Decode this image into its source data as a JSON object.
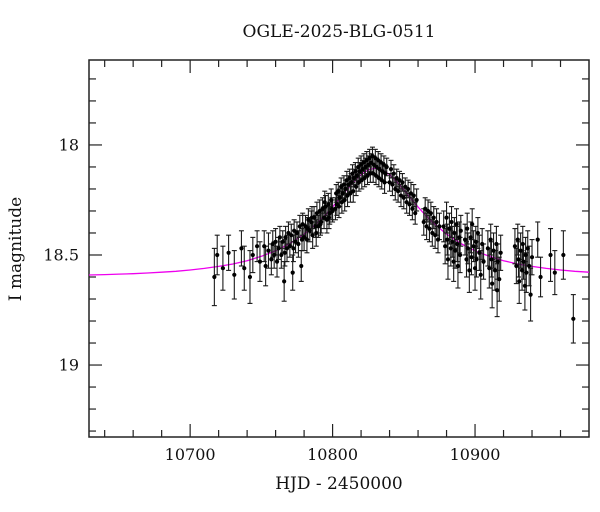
{
  "figure": {
    "background": "#ffffff"
  },
  "chart_data": {
    "type": "scatter",
    "title": "OGLE-2025-BLG-0511",
    "xlabel": "HJD - 2450000",
    "ylabel": "I magnitude",
    "xlim": [
      10629,
      10980
    ],
    "ylim": [
      17.614,
      19.327
    ],
    "y_axis_inverted_magnitude": true,
    "grid": false,
    "legend": "none",
    "x_major_ticks": [
      10700,
      10800,
      10900
    ],
    "x_tick_labels": [
      "10700",
      "10800",
      "10900"
    ],
    "x_minor_step": 20,
    "y_major_ticks": [
      18,
      18.5,
      19
    ],
    "y_tick_labels": [
      "18",
      "18.5",
      "19"
    ],
    "y_minor_step": 0.1,
    "model_curve": {
      "name": "microlensing-model",
      "color": "#ee00ee",
      "points": [
        [
          10629,
          18.591
        ],
        [
          10640,
          18.589
        ],
        [
          10650,
          18.587
        ],
        [
          10660,
          18.585
        ],
        [
          10670,
          18.582
        ],
        [
          10680,
          18.578
        ],
        [
          10690,
          18.574
        ],
        [
          10700,
          18.568
        ],
        [
          10710,
          18.561
        ],
        [
          10720,
          18.552
        ],
        [
          10730,
          18.541
        ],
        [
          10740,
          18.526
        ],
        [
          10750,
          18.506
        ],
        [
          10760,
          18.481
        ],
        [
          10770,
          18.448
        ],
        [
          10780,
          18.405
        ],
        [
          10790,
          18.35
        ],
        [
          10795,
          18.318
        ],
        [
          10800,
          18.282
        ],
        [
          10805,
          18.243
        ],
        [
          10810,
          18.204
        ],
        [
          10815,
          18.167
        ],
        [
          10820,
          18.135
        ],
        [
          10825,
          18.113
        ],
        [
          10830,
          18.106
        ],
        [
          10835,
          18.113
        ],
        [
          10840,
          18.135
        ],
        [
          10845,
          18.167
        ],
        [
          10850,
          18.204
        ],
        [
          10855,
          18.243
        ],
        [
          10860,
          18.282
        ],
        [
          10865,
          18.318
        ],
        [
          10870,
          18.35
        ],
        [
          10880,
          18.405
        ],
        [
          10890,
          18.448
        ],
        [
          10900,
          18.481
        ],
        [
          10910,
          18.506
        ],
        [
          10920,
          18.526
        ],
        [
          10930,
          18.541
        ],
        [
          10940,
          18.552
        ],
        [
          10950,
          18.561
        ],
        [
          10960,
          18.568
        ],
        [
          10970,
          18.574
        ],
        [
          10980,
          18.578
        ]
      ]
    },
    "observations": {
      "name": "OGLE-I-band-photometry",
      "marker_color": "#000000",
      "errorbar_color": "#1a1a1a",
      "points": [
        [
          10717,
          18.6,
          0.13
        ],
        [
          10719,
          18.5,
          0.09
        ],
        [
          10723,
          18.56,
          0.1
        ],
        [
          10727,
          18.49,
          0.08
        ],
        [
          10731,
          18.59,
          0.11
        ],
        [
          10736,
          18.47,
          0.08
        ],
        [
          10738,
          18.56,
          0.1
        ],
        [
          10742,
          18.6,
          0.12
        ],
        [
          10744,
          18.5,
          0.08
        ],
        [
          10747,
          18.46,
          0.07
        ],
        [
          10749,
          18.53,
          0.09
        ],
        [
          10752,
          18.46,
          0.07
        ],
        [
          10753,
          18.55,
          0.09
        ],
        [
          10755,
          18.48,
          0.08
        ],
        [
          10757,
          18.52,
          0.07
        ],
        [
          10758,
          18.45,
          0.06
        ],
        [
          10759,
          18.5,
          0.06
        ],
        [
          10760,
          18.44,
          0.06
        ],
        [
          10761,
          18.53,
          0.07
        ],
        [
          10762,
          18.47,
          0.05
        ],
        [
          10763,
          18.42,
          0.05
        ],
        [
          10764,
          18.5,
          0.06
        ],
        [
          10765,
          18.44,
          0.05
        ],
        [
          10766,
          18.62,
          0.09
        ],
        [
          10766.5,
          18.49,
          0.06
        ],
        [
          10767,
          18.42,
          0.05
        ],
        [
          10768,
          18.47,
          0.06
        ],
        [
          10769,
          18.4,
          0.05
        ],
        [
          10770,
          18.46,
          0.05
        ],
        [
          10771,
          18.41,
          0.05
        ],
        [
          10772,
          18.58,
          0.08
        ],
        [
          10772.5,
          18.47,
          0.06
        ],
        [
          10773,
          18.39,
          0.05
        ],
        [
          10774,
          18.44,
          0.05
        ],
        [
          10775,
          18.4,
          0.05
        ],
        [
          10776,
          18.45,
          0.06
        ],
        [
          10777,
          18.37,
          0.05
        ],
        [
          10778,
          18.55,
          0.07
        ],
        [
          10778.5,
          18.43,
          0.05
        ],
        [
          10779,
          18.36,
          0.05
        ],
        [
          10780,
          18.42,
          0.06
        ],
        [
          10781,
          18.37,
          0.05
        ],
        [
          10782,
          18.43,
          0.06
        ],
        [
          10782.5,
          18.38,
          0.05
        ],
        [
          10783,
          18.34,
          0.05
        ],
        [
          10784,
          18.39,
          0.05
        ],
        [
          10785,
          18.35,
          0.05
        ],
        [
          10785.5,
          18.33,
          0.05
        ],
        [
          10786,
          18.41,
          0.06
        ],
        [
          10787,
          18.33,
          0.05
        ],
        [
          10788,
          18.37,
          0.05
        ],
        [
          10788.5,
          18.4,
          0.06
        ],
        [
          10789,
          18.31,
          0.05
        ],
        [
          10790,
          18.37,
          0.05
        ],
        [
          10791,
          18.3,
          0.05
        ],
        [
          10791.5,
          18.36,
          0.05
        ],
        [
          10792,
          18.35,
          0.05
        ],
        [
          10793,
          18.29,
          0.05
        ],
        [
          10794,
          18.33,
          0.05
        ],
        [
          10794.5,
          18.26,
          0.05
        ],
        [
          10795,
          18.28,
          0.05
        ],
        [
          10796,
          18.34,
          0.06
        ],
        [
          10797,
          18.27,
          0.05
        ],
        [
          10797.5,
          18.33,
          0.05
        ],
        [
          10798,
          18.31,
          0.05
        ],
        [
          10799,
          18.25,
          0.05
        ],
        [
          10799.5,
          18.29,
          0.05
        ],
        [
          10800,
          18.3,
          0.05
        ],
        [
          10802,
          18.29,
          0.05
        ],
        [
          10802.5,
          18.22,
          0.04
        ],
        [
          10803,
          18.27,
          0.05
        ],
        [
          10804,
          18.21,
          0.04
        ],
        [
          10804.5,
          18.28,
          0.05
        ],
        [
          10805,
          18.24,
          0.04
        ],
        [
          10806,
          18.19,
          0.04
        ],
        [
          10806.5,
          18.26,
          0.05
        ],
        [
          10807,
          18.22,
          0.04
        ],
        [
          10808,
          18.18,
          0.04
        ],
        [
          10808.5,
          18.25,
          0.05
        ],
        [
          10809,
          18.2,
          0.04
        ],
        [
          10810,
          18.16,
          0.04
        ],
        [
          10810.5,
          18.23,
          0.05
        ],
        [
          10811,
          18.18,
          0.04
        ],
        [
          10812,
          18.15,
          0.04
        ],
        [
          10812.5,
          18.22,
          0.04
        ],
        [
          10813,
          18.17,
          0.04
        ],
        [
          10814,
          18.13,
          0.04
        ],
        [
          10814.5,
          18.21,
          0.05
        ],
        [
          10815,
          18.15,
          0.04
        ],
        [
          10816,
          18.12,
          0.04
        ],
        [
          10816.5,
          18.19,
          0.04
        ],
        [
          10817,
          18.14,
          0.04
        ],
        [
          10818,
          18.1,
          0.04
        ],
        [
          10818.5,
          18.17,
          0.04
        ],
        [
          10819,
          18.12,
          0.04
        ],
        [
          10820,
          18.09,
          0.04
        ],
        [
          10820.5,
          18.16,
          0.04
        ],
        [
          10821,
          18.11,
          0.04
        ],
        [
          10822,
          18.08,
          0.04
        ],
        [
          10822.5,
          18.15,
          0.04
        ],
        [
          10823,
          18.1,
          0.04
        ],
        [
          10824,
          18.07,
          0.04
        ],
        [
          10824.5,
          18.14,
          0.04
        ],
        [
          10825,
          18.09,
          0.04
        ],
        [
          10826,
          18.06,
          0.04
        ],
        [
          10826.5,
          18.13,
          0.04
        ],
        [
          10827,
          18.08,
          0.04
        ],
        [
          10828,
          18.05,
          0.04
        ],
        [
          10828.5,
          18.13,
          0.04
        ],
        [
          10829,
          18.09,
          0.04
        ],
        [
          10830,
          18.06,
          0.04
        ],
        [
          10830.5,
          18.14,
          0.04
        ],
        [
          10831,
          18.1,
          0.04
        ],
        [
          10832,
          18.07,
          0.04
        ],
        [
          10832.5,
          18.15,
          0.04
        ],
        [
          10833,
          18.11,
          0.04
        ],
        [
          10834,
          18.08,
          0.04
        ],
        [
          10834.5,
          18.16,
          0.04
        ],
        [
          10835,
          18.12,
          0.04
        ],
        [
          10836,
          18.09,
          0.04
        ],
        [
          10836.5,
          18.17,
          0.05
        ],
        [
          10837,
          18.13,
          0.04
        ],
        [
          10838,
          18.1,
          0.04
        ],
        [
          10840,
          18.17,
          0.04
        ],
        [
          10841,
          18.11,
          0.04
        ],
        [
          10842,
          18.18,
          0.05
        ],
        [
          10843,
          18.13,
          0.04
        ],
        [
          10844,
          18.2,
          0.05
        ],
        [
          10845,
          18.15,
          0.04
        ],
        [
          10846,
          18.21,
          0.05
        ],
        [
          10847,
          18.16,
          0.04
        ],
        [
          10848,
          18.23,
          0.05
        ],
        [
          10849,
          18.17,
          0.04
        ],
        [
          10850,
          18.24,
          0.05
        ],
        [
          10851,
          18.19,
          0.04
        ],
        [
          10852,
          18.26,
          0.05
        ],
        [
          10853,
          18.2,
          0.04
        ],
        [
          10854,
          18.27,
          0.05
        ],
        [
          10855,
          18.22,
          0.05
        ],
        [
          10856,
          18.29,
          0.05
        ],
        [
          10857,
          18.23,
          0.05
        ],
        [
          10858,
          18.31,
          0.05
        ],
        [
          10859,
          18.25,
          0.05
        ],
        [
          10864,
          18.35,
          0.06
        ],
        [
          10865,
          18.29,
          0.05
        ],
        [
          10866,
          18.37,
          0.06
        ],
        [
          10867,
          18.3,
          0.05
        ],
        [
          10868,
          18.38,
          0.06
        ],
        [
          10869,
          18.31,
          0.05
        ],
        [
          10870,
          18.4,
          0.06
        ],
        [
          10871,
          18.33,
          0.05
        ],
        [
          10872,
          18.41,
          0.06
        ],
        [
          10873,
          18.35,
          0.06
        ],
        [
          10874,
          18.43,
          0.06
        ],
        [
          10875,
          18.37,
          0.06
        ],
        [
          10878,
          18.37,
          0.07
        ],
        [
          10879,
          18.46,
          0.08
        ],
        [
          10880,
          18.33,
          0.07
        ],
        [
          10880.5,
          18.43,
          0.07
        ],
        [
          10881,
          18.52,
          0.09
        ],
        [
          10882,
          18.38,
          0.07
        ],
        [
          10883,
          18.47,
          0.08
        ],
        [
          10883.5,
          18.35,
          0.07
        ],
        [
          10884,
          18.44,
          0.07
        ],
        [
          10885,
          18.53,
          0.09
        ],
        [
          10885.5,
          18.4,
          0.07
        ],
        [
          10886,
          18.48,
          0.08
        ],
        [
          10887,
          18.36,
          0.07
        ],
        [
          10887.5,
          18.45,
          0.08
        ],
        [
          10888,
          18.55,
          0.1
        ],
        [
          10889,
          18.42,
          0.07
        ],
        [
          10889.5,
          18.5,
          0.08
        ],
        [
          10890,
          18.39,
          0.07
        ],
        [
          10893,
          18.43,
          0.07
        ],
        [
          10894,
          18.52,
          0.08
        ],
        [
          10894.5,
          18.38,
          0.07
        ],
        [
          10895,
          18.47,
          0.07
        ],
        [
          10896,
          18.57,
          0.1
        ],
        [
          10897,
          18.42,
          0.07
        ],
        [
          10897.5,
          18.51,
          0.08
        ],
        [
          10898,
          18.36,
          0.07
        ],
        [
          10899,
          18.46,
          0.07
        ],
        [
          10900,
          18.56,
          0.1
        ],
        [
          10900.5,
          18.44,
          0.07
        ],
        [
          10901,
          18.52,
          0.08
        ],
        [
          10902,
          18.4,
          0.07
        ],
        [
          10903,
          18.49,
          0.08
        ],
        [
          10904,
          18.59,
          0.11
        ],
        [
          10905,
          18.45,
          0.07
        ],
        [
          10906,
          18.53,
          0.08
        ],
        [
          10909,
          18.47,
          0.08
        ],
        [
          10910,
          18.56,
          0.09
        ],
        [
          10911,
          18.43,
          0.07
        ],
        [
          10911.5,
          18.52,
          0.08
        ],
        [
          10912,
          18.63,
          0.11
        ],
        [
          10913,
          18.48,
          0.08
        ],
        [
          10914,
          18.57,
          0.09
        ],
        [
          10915,
          18.45,
          0.08
        ],
        [
          10915.5,
          18.66,
          0.12
        ],
        [
          10916,
          18.53,
          0.08
        ],
        [
          10917,
          18.61,
          0.1
        ],
        [
          10918,
          18.49,
          0.08
        ],
        [
          10928,
          18.46,
          0.08
        ],
        [
          10929,
          18.55,
          0.08
        ],
        [
          10930,
          18.43,
          0.07
        ],
        [
          10930.5,
          18.52,
          0.08
        ],
        [
          10931,
          18.62,
          0.1
        ],
        [
          10932,
          18.48,
          0.08
        ],
        [
          10933,
          18.57,
          0.09
        ],
        [
          10933.5,
          18.45,
          0.08
        ],
        [
          10934,
          18.53,
          0.08
        ],
        [
          10935,
          18.64,
          0.11
        ],
        [
          10935.5,
          18.5,
          0.08
        ],
        [
          10936,
          18.58,
          0.09
        ],
        [
          10937,
          18.47,
          0.08
        ],
        [
          10938,
          18.55,
          0.09
        ],
        [
          10939,
          18.68,
          0.12
        ],
        [
          10940,
          18.51,
          0.08
        ],
        [
          10944,
          18.43,
          0.08
        ],
        [
          10946,
          18.6,
          0.09
        ],
        [
          10953,
          18.5,
          0.12
        ],
        [
          10956,
          18.58,
          0.1
        ],
        [
          10962,
          18.5,
          0.11
        ],
        [
          10969,
          18.79,
          0.11
        ]
      ]
    },
    "colors": {
      "frame": "#222222",
      "model_curve": "#ee00ee",
      "data_points": "#000000",
      "background": "#ffffff"
    }
  }
}
